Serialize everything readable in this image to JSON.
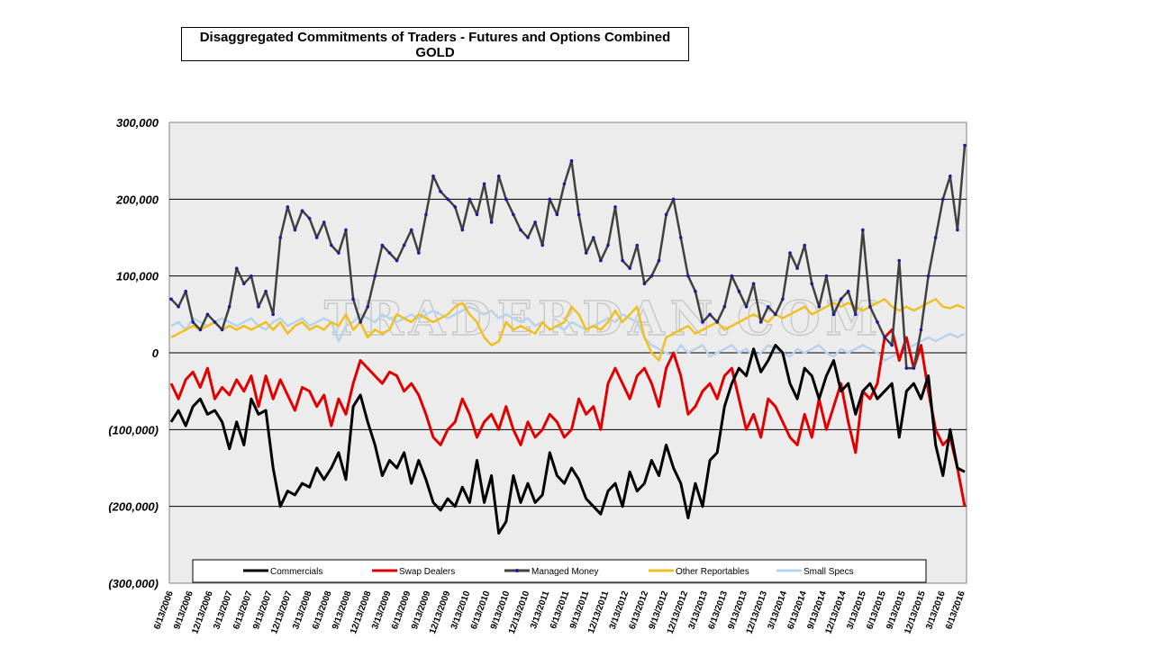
{
  "chart_data": {
    "type": "line",
    "title": "Disaggregated Commitments of Traders - Futures and Options Combined",
    "subtitle": "GOLD",
    "watermark": "TRADERDAN.COM",
    "ylim": [
      -300000,
      300000
    ],
    "yticks": [
      {
        "value": 300000,
        "label": "300,000"
      },
      {
        "value": 200000,
        "label": "200,000"
      },
      {
        "value": 100000,
        "label": "100,000"
      },
      {
        "value": 0,
        "label": "0"
      },
      {
        "value": -100000,
        "label": "(100,000)"
      },
      {
        "value": -200000,
        "label": "(200,000)"
      },
      {
        "value": -300000,
        "label": "(300,000)"
      }
    ],
    "xticks": [
      "6/13/2006",
      "9/13/2006",
      "12/13/2006",
      "3/13/2007",
      "6/13/2007",
      "9/13/2007",
      "12/13/2007",
      "3/13/2008",
      "6/13/2008",
      "9/13/2008",
      "12/13/2008",
      "3/13/2009",
      "6/13/2009",
      "9/13/2009",
      "12/13/2009",
      "3/13/2010",
      "6/13/2010",
      "9/13/2010",
      "12/13/2010",
      "3/13/2011",
      "6/13/2011",
      "9/13/2011",
      "12/13/2011",
      "3/13/2012",
      "6/13/2012",
      "9/13/2012",
      "12/13/2012",
      "3/13/2013",
      "6/13/2013",
      "9/13/2013",
      "12/13/2013",
      "3/13/2014",
      "6/13/2014",
      "9/13/2014",
      "12/13/2014",
      "3/13/2015",
      "6/13/2015",
      "9/13/2015",
      "12/13/2015",
      "3/13/2016",
      "6/13/2016"
    ],
    "grid": "horizontal",
    "legend_position": "bottom",
    "series": [
      {
        "name": "Commercials",
        "color": "#000000",
        "width": 3,
        "markers": false,
        "values": [
          -90000,
          -75000,
          -95000,
          -70000,
          -60000,
          -80000,
          -75000,
          -90000,
          -125000,
          -90000,
          -120000,
          -60000,
          -80000,
          -75000,
          -150000,
          -200000,
          -180000,
          -185000,
          -170000,
          -175000,
          -150000,
          -165000,
          -150000,
          -130000,
          -165000,
          -70000,
          -55000,
          -90000,
          -120000,
          -160000,
          -140000,
          -150000,
          -130000,
          -170000,
          -140000,
          -165000,
          -195000,
          -205000,
          -190000,
          -200000,
          -175000,
          -195000,
          -140000,
          -195000,
          -160000,
          -235000,
          -220000,
          -160000,
          -195000,
          -170000,
          -195000,
          -185000,
          -130000,
          -160000,
          -170000,
          -150000,
          -165000,
          -190000,
          -200000,
          -210000,
          -180000,
          -170000,
          -200000,
          -155000,
          -180000,
          -170000,
          -140000,
          -160000,
          -120000,
          -150000,
          -170000,
          -215000,
          -170000,
          -200000,
          -140000,
          -130000,
          -70000,
          -40000,
          -20000,
          -30000,
          5000,
          -25000,
          -10000,
          10000,
          0,
          -40000,
          -60000,
          -20000,
          -30000,
          -60000,
          -30000,
          -10000,
          -50000,
          -40000,
          -80000,
          -50000,
          -40000,
          -60000,
          -50000,
          -40000,
          -110000,
          -50000,
          -40000,
          -60000,
          -30000,
          -120000,
          -160000,
          -100000,
          -150000,
          -155000
        ]
      },
      {
        "name": "Swap Dealers",
        "color": "#e00000",
        "width": 3,
        "markers": false,
        "values": [
          -40000,
          -60000,
          -35000,
          -25000,
          -45000,
          -20000,
          -60000,
          -45000,
          -55000,
          -35000,
          -50000,
          -30000,
          -70000,
          -30000,
          -60000,
          -35000,
          -55000,
          -75000,
          -45000,
          -50000,
          -70000,
          -55000,
          -95000,
          -60000,
          -80000,
          -40000,
          -10000,
          -20000,
          -30000,
          -40000,
          -25000,
          -30000,
          -50000,
          -40000,
          -55000,
          -80000,
          -110000,
          -120000,
          -100000,
          -90000,
          -60000,
          -80000,
          -110000,
          -90000,
          -80000,
          -100000,
          -70000,
          -100000,
          -120000,
          -90000,
          -110000,
          -100000,
          -80000,
          -90000,
          -110000,
          -100000,
          -60000,
          -80000,
          -70000,
          -100000,
          -40000,
          -20000,
          -40000,
          -60000,
          -30000,
          -20000,
          -40000,
          -70000,
          -20000,
          0,
          -30000,
          -80000,
          -70000,
          -50000,
          -40000,
          -60000,
          -30000,
          -20000,
          -60000,
          -100000,
          -80000,
          -110000,
          -60000,
          -70000,
          -90000,
          -110000,
          -120000,
          -80000,
          -110000,
          -60000,
          -100000,
          -70000,
          -40000,
          -90000,
          -130000,
          -50000,
          -60000,
          -40000,
          20000,
          30000,
          -10000,
          20000,
          -20000,
          10000,
          -50000,
          -100000,
          -120000,
          -110000,
          -150000,
          -200000
        ]
      },
      {
        "name": "Managed Money",
        "color": "#1a1aa8",
        "line_color": "#404040",
        "width": 2.5,
        "markers": true,
        "values": [
          70000,
          60000,
          80000,
          40000,
          30000,
          50000,
          40000,
          30000,
          60000,
          110000,
          90000,
          100000,
          60000,
          80000,
          50000,
          150000,
          190000,
          160000,
          185000,
          175000,
          150000,
          170000,
          140000,
          130000,
          160000,
          70000,
          40000,
          60000,
          100000,
          140000,
          130000,
          120000,
          140000,
          160000,
          130000,
          180000,
          230000,
          210000,
          200000,
          190000,
          160000,
          200000,
          180000,
          220000,
          170000,
          230000,
          200000,
          180000,
          160000,
          150000,
          170000,
          140000,
          200000,
          180000,
          220000,
          250000,
          180000,
          130000,
          150000,
          120000,
          140000,
          190000,
          120000,
          110000,
          140000,
          90000,
          100000,
          120000,
          180000,
          200000,
          150000,
          100000,
          80000,
          40000,
          50000,
          40000,
          60000,
          100000,
          80000,
          60000,
          90000,
          40000,
          60000,
          50000,
          70000,
          130000,
          110000,
          140000,
          90000,
          60000,
          100000,
          50000,
          70000,
          80000,
          50000,
          160000,
          60000,
          40000,
          20000,
          10000,
          120000,
          -20000,
          -20000,
          30000,
          100000,
          150000,
          200000,
          230000,
          160000,
          270000
        ]
      },
      {
        "name": "Other Reportables",
        "color": "#f0c020",
        "width": 2.5,
        "markers": false,
        "values": [
          20000,
          25000,
          30000,
          35000,
          30000,
          35000,
          40000,
          30000,
          35000,
          30000,
          35000,
          30000,
          35000,
          40000,
          30000,
          40000,
          25000,
          35000,
          40000,
          30000,
          35000,
          30000,
          40000,
          35000,
          50000,
          30000,
          40000,
          20000,
          30000,
          25000,
          30000,
          50000,
          45000,
          40000,
          50000,
          45000,
          40000,
          45000,
          50000,
          60000,
          65000,
          50000,
          40000,
          20000,
          10000,
          15000,
          40000,
          30000,
          35000,
          30000,
          25000,
          40000,
          30000,
          35000,
          40000,
          60000,
          50000,
          30000,
          35000,
          30000,
          40000,
          55000,
          40000,
          50000,
          60000,
          20000,
          0,
          -10000,
          20000,
          25000,
          30000,
          35000,
          25000,
          30000,
          35000,
          40000,
          30000,
          35000,
          40000,
          45000,
          50000,
          45000,
          40000,
          50000,
          45000,
          50000,
          55000,
          60000,
          50000,
          55000,
          60000,
          65000,
          60000,
          65000,
          60000,
          55000,
          60000,
          65000,
          70000,
          60000,
          55000,
          60000,
          55000,
          60000,
          65000,
          70000,
          60000,
          58000,
          62000,
          58000
        ]
      },
      {
        "name": "Small Specs",
        "color": "#b8d4ec",
        "width": 2.5,
        "markers": false,
        "values": [
          35000,
          40000,
          30000,
          45000,
          40000,
          35000,
          40000,
          45000,
          40000,
          35000,
          40000,
          45000,
          35000,
          30000,
          40000,
          45000,
          35000,
          40000,
          45000,
          35000,
          40000,
          45000,
          40000,
          15000,
          35000,
          40000,
          50000,
          45000,
          40000,
          50000,
          45000,
          40000,
          45000,
          50000,
          45000,
          50000,
          55000,
          50000,
          45000,
          50000,
          55000,
          60000,
          55000,
          50000,
          55000,
          45000,
          50000,
          45000,
          40000,
          45000,
          35000,
          40000,
          30000,
          35000,
          30000,
          40000,
          35000,
          30000,
          35000,
          40000,
          45000,
          40000,
          50000,
          45000,
          40000,
          20000,
          10000,
          5000,
          0,
          -5000,
          10000,
          0,
          5000,
          10000,
          -5000,
          0,
          5000,
          10000,
          0,
          5000,
          -5000,
          0,
          10000,
          5000,
          0,
          -5000,
          5000,
          0,
          5000,
          10000,
          0,
          -5000,
          5000,
          0,
          5000,
          10000,
          5000,
          0,
          -10000,
          -5000,
          0,
          5000,
          10000,
          15000,
          20000,
          15000,
          20000,
          25000,
          20000,
          25000
        ]
      }
    ]
  }
}
